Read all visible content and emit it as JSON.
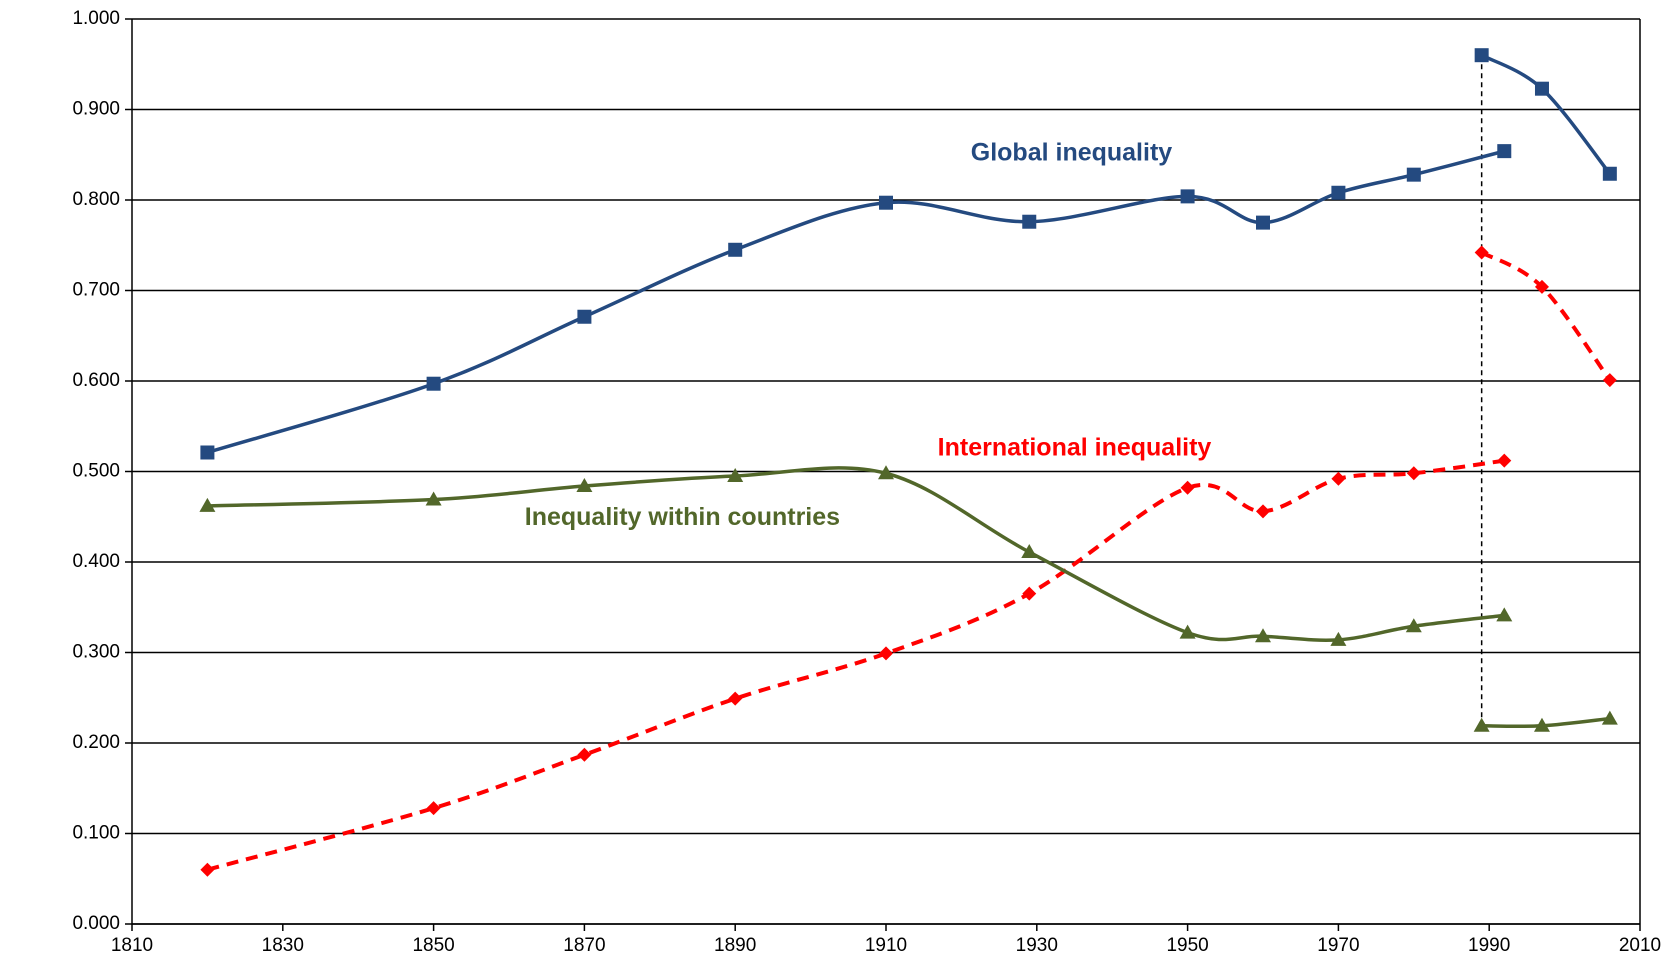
{
  "chart_data": {
    "type": "line",
    "xlim": [
      1810,
      2010
    ],
    "xticks": [
      1810,
      1830,
      1850,
      1870,
      1890,
      1910,
      1930,
      1950,
      1970,
      1990,
      2010
    ],
    "ylim": [
      0,
      1
    ],
    "yticks": [
      {
        "value": 0,
        "label": "0.000"
      },
      {
        "value": 0.1,
        "label": "0.100"
      },
      {
        "value": 0.2,
        "label": "0.200"
      },
      {
        "value": 0.3,
        "label": "0.300"
      },
      {
        "value": 0.4,
        "label": "0.400"
      },
      {
        "value": 0.5,
        "label": "0.500"
      },
      {
        "value": 0.6,
        "label": "0.600"
      },
      {
        "value": 0.7,
        "label": "0.700"
      },
      {
        "value": 0.8,
        "label": "0.800"
      },
      {
        "value": 0.9,
        "label": "0.900"
      },
      {
        "value": 1,
        "label": "1.000"
      }
    ],
    "grid": true,
    "series": [
      {
        "name": "Global inequality",
        "color": "#244a80",
        "marker": "square",
        "dashed": false,
        "x": [
          1820,
          1850,
          1870,
          1890,
          1910,
          1929,
          1950,
          1960,
          1970,
          1980,
          1992,
          null,
          1989,
          1997,
          2006
        ],
        "values": [
          0.521,
          0.597,
          0.671,
          0.745,
          0.797,
          0.776,
          0.804,
          0.775,
          0.808,
          0.828,
          0.854,
          null,
          0.96,
          0.923,
          0.829
        ]
      },
      {
        "name": "International inequality",
        "color": "#ff0000",
        "marker": "diamond",
        "dashed": true,
        "x": [
          1820,
          1850,
          1870,
          1890,
          1910,
          1929,
          1950,
          1960,
          1970,
          1980,
          1992,
          null,
          1989,
          1997,
          2006
        ],
        "values": [
          0.06,
          0.128,
          0.187,
          0.249,
          0.299,
          0.365,
          0.482,
          0.456,
          0.492,
          0.498,
          0.512,
          null,
          0.742,
          0.704,
          0.601
        ]
      },
      {
        "name": "Inequality within countries",
        "color": "#52672a",
        "marker": "triangle",
        "dashed": false,
        "x": [
          1820,
          1850,
          1870,
          1890,
          1910,
          1929,
          1950,
          1960,
          1970,
          1980,
          1992,
          null,
          1989,
          1997,
          2006
        ],
        "values": [
          0.462,
          0.469,
          0.484,
          0.495,
          0.498,
          0.411,
          0.322,
          0.318,
          0.314,
          0.329,
          0.341,
          null,
          0.219,
          0.219,
          0.227
        ]
      }
    ]
  }
}
